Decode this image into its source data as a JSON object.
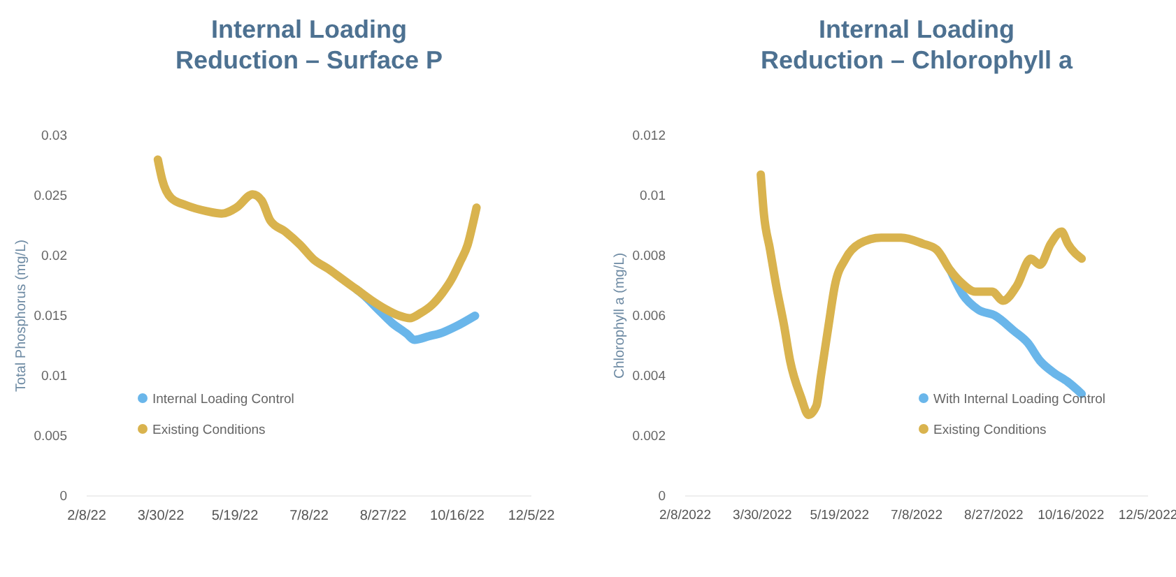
{
  "chart_data": [
    {
      "type": "line",
      "title": "Internal Loading\nReduction – Surface P",
      "ylabel": "Total Phosphorus (mg/L)",
      "xlim": [
        "2022-02-08",
        "2022-12-05"
      ],
      "xticks": [
        {
          "value": "2022-02-08",
          "label": "2/8/22"
        },
        {
          "value": "2022-03-30",
          "label": "3/30/22"
        },
        {
          "value": "2022-05-19",
          "label": "5/19/22"
        },
        {
          "value": "2022-07-08",
          "label": "7/8/22"
        },
        {
          "value": "2022-08-27",
          "label": "8/27/22"
        },
        {
          "value": "2022-10-16",
          "label": "10/16/22"
        },
        {
          "value": "2022-12-05",
          "label": "12/5/22"
        }
      ],
      "ylim": [
        0,
        0.03
      ],
      "yticks": [
        0,
        0.005,
        0.01,
        0.015,
        0.02,
        0.025,
        0.03
      ],
      "grid": false,
      "legend": "bottom left",
      "marker": "none",
      "series": [
        {
          "name": "Internal Loading Control",
          "color": "#6ab6ea",
          "x": [
            "2022-08-09",
            "2022-08-14",
            "2022-08-23",
            "2022-09-02",
            "2022-09-12",
            "2022-09-17",
            "2022-09-27",
            "2022-10-06",
            "2022-10-15",
            "2022-10-28"
          ],
          "values": [
            0.0172,
            0.0167,
            0.0156,
            0.0144,
            0.0135,
            0.013,
            0.0133,
            0.0136,
            0.0141,
            0.015
          ]
        },
        {
          "name": "Existing Conditions",
          "color": "#d9b34e",
          "x": [
            "2022-03-28",
            "2022-03-31",
            "2022-04-06",
            "2022-04-16",
            "2022-04-30",
            "2022-05-10",
            "2022-05-20",
            "2022-05-31",
            "2022-06-06",
            "2022-06-12",
            "2022-06-22",
            "2022-07-02",
            "2022-07-11",
            "2022-07-21",
            "2022-07-31",
            "2022-08-09",
            "2022-08-19",
            "2022-08-28",
            "2022-09-07",
            "2022-09-14",
            "2022-09-21",
            "2022-09-29",
            "2022-10-06",
            "2022-10-12",
            "2022-10-18",
            "2022-10-23",
            "2022-10-27",
            "2022-10-29"
          ],
          "values": [
            0.028,
            0.0263,
            0.0248,
            0.0242,
            0.0237,
            0.0235,
            0.024,
            0.0251,
            0.0246,
            0.0229,
            0.022,
            0.0209,
            0.0197,
            0.0189,
            0.018,
            0.0172,
            0.0163,
            0.0156,
            0.015,
            0.0148,
            0.0152,
            0.0159,
            0.0169,
            0.018,
            0.0195,
            0.0209,
            0.0229,
            0.024
          ]
        }
      ]
    },
    {
      "type": "line",
      "title": "Internal Loading\nReduction – Chlorophyll a",
      "ylabel": "Chlorophyll a (mg/L)",
      "xlim": [
        "2022-02-08",
        "2022-12-05"
      ],
      "xticks": [
        {
          "value": "2022-02-08",
          "label": "2/8/2022"
        },
        {
          "value": "2022-03-30",
          "label": "3/30/2022"
        },
        {
          "value": "2022-05-19",
          "label": "5/19/2022"
        },
        {
          "value": "2022-07-08",
          "label": "7/8/2022"
        },
        {
          "value": "2022-08-27",
          "label": "8/27/2022"
        },
        {
          "value": "2022-10-16",
          "label": "10/16/2022"
        },
        {
          "value": "2022-12-05",
          "label": "12/5/2022"
        }
      ],
      "ylim": [
        0,
        0.012
      ],
      "yticks": [
        0,
        0.002,
        0.004,
        0.006,
        0.008,
        0.01,
        0.012
      ],
      "grid": false,
      "legend": "bottom right",
      "marker": "none",
      "series": [
        {
          "name": "With Internal Loading Control",
          "color": "#6ab6ea",
          "x": [
            "2022-07-30",
            "2022-08-07",
            "2022-08-17",
            "2022-08-28",
            "2022-09-09",
            "2022-09-18",
            "2022-09-26",
            "2022-10-05",
            "2022-10-14",
            "2022-10-23"
          ],
          "values": [
            0.0075,
            0.0067,
            0.0062,
            0.006,
            0.0055,
            0.0051,
            0.0045,
            0.0041,
            0.0038,
            0.0034
          ]
        },
        {
          "name": "Existing Conditions",
          "color": "#d9b34e",
          "x": [
            "2022-03-29",
            "2022-03-31",
            "2022-04-04",
            "2022-04-08",
            "2022-04-13",
            "2022-04-17",
            "2022-04-24",
            "2022-04-29",
            "2022-05-04",
            "2022-05-07",
            "2022-05-12",
            "2022-05-16",
            "2022-05-23",
            "2022-06-01",
            "2022-06-15",
            "2022-06-28",
            "2022-07-12",
            "2022-07-21",
            "2022-07-30",
            "2022-08-06",
            "2022-08-15",
            "2022-08-26",
            "2022-09-02",
            "2022-09-11",
            "2022-09-20",
            "2022-09-26",
            "2022-10-03",
            "2022-10-10",
            "2022-10-14",
            "2022-10-23"
          ],
          "values": [
            0.0107,
            0.0094,
            0.0082,
            0.007,
            0.0057,
            0.0045,
            0.0033,
            0.0027,
            0.003,
            0.004,
            0.0057,
            0.007,
            0.0079,
            0.0084,
            0.0086,
            0.0086,
            0.0084,
            0.0082,
            0.0075,
            0.0071,
            0.0068,
            0.0068,
            0.0065,
            0.007,
            0.0079,
            0.0077,
            0.0084,
            0.0088,
            0.0084,
            0.0079
          ]
        }
      ]
    }
  ]
}
